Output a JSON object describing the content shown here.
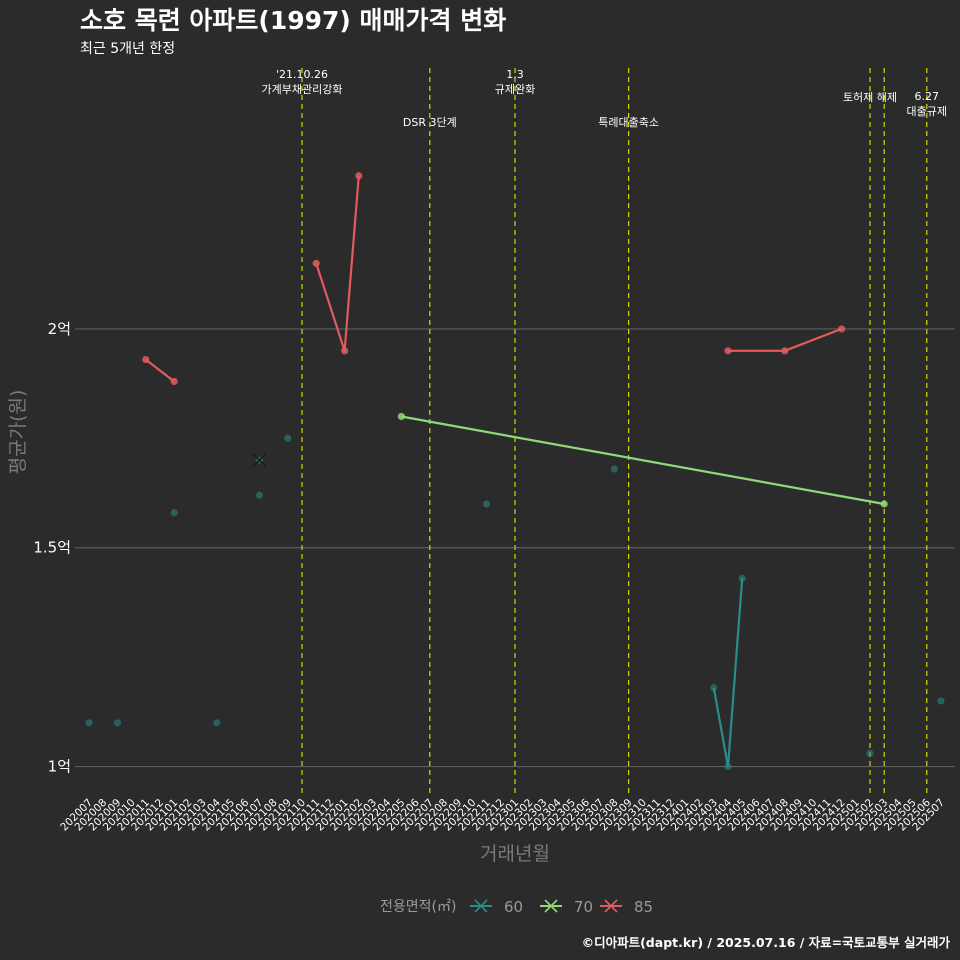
{
  "title": "소호 목련 아파트(1997) 매매가격 변화",
  "subtitle": "최근 5개년 한정",
  "caption": "©디아파트(dapt.kr) / 2025.07.16 / 자료=국토교통부 실거래가",
  "chart_data": {
    "type": "line",
    "xlabel": "거래년월",
    "ylabel": "평균가(원)",
    "ylim": [
      0.935,
      2.61
    ],
    "yticks": [
      {
        "value": 1.0,
        "label": "1억"
      },
      {
        "value": 1.5,
        "label": "1.5억"
      },
      {
        "value": 2.0,
        "label": "2억"
      }
    ],
    "grid": true,
    "categories": [
      "202007",
      "202008",
      "202009",
      "202010",
      "202011",
      "202012",
      "202101",
      "202102",
      "202103",
      "202104",
      "202105",
      "202106",
      "202107",
      "202108",
      "202109",
      "202110",
      "202111",
      "202112",
      "202201",
      "202202",
      "202203",
      "202204",
      "202205",
      "202206",
      "202207",
      "202208",
      "202209",
      "202210",
      "202211",
      "202212",
      "202301",
      "202302",
      "202303",
      "202304",
      "202305",
      "202306",
      "202307",
      "202308",
      "202309",
      "202310",
      "202311",
      "202312",
      "202401",
      "202402",
      "202403",
      "202404",
      "202405",
      "202406",
      "202407",
      "202408",
      "202409",
      "202410",
      "202411",
      "202412",
      "202501",
      "202502",
      "202503",
      "202504",
      "202505",
      "202506",
      "202507"
    ],
    "legend_title": "전용면적(㎡)",
    "legend_position": "bottom",
    "series": [
      {
        "name": "60",
        "color": "#2a8c88",
        "lines": [
          [
            [
              "202403",
              1.18
            ],
            [
              "202404",
              1.0
            ],
            [
              "202405",
              1.43
            ]
          ]
        ],
        "points": [
          [
            "202007",
            1.1
          ],
          [
            "202009",
            1.1
          ],
          [
            "202101",
            1.58
          ],
          [
            "202104",
            1.1
          ],
          [
            "202107",
            1.62
          ],
          [
            "202107",
            1.7
          ],
          [
            "202109",
            1.75
          ],
          [
            "202211",
            1.6
          ],
          [
            "202308",
            1.68
          ],
          [
            "202403",
            1.18
          ],
          [
            "202404",
            1.0
          ],
          [
            "202405",
            1.43
          ],
          [
            "202502",
            1.03
          ],
          [
            "202507",
            1.15
          ]
        ]
      },
      {
        "name": "70",
        "color": "#8fd97a",
        "lines": [
          [
            [
              "202205",
              1.8
            ],
            [
              "202503",
              1.6
            ]
          ]
        ],
        "points": [
          [
            "202205",
            1.8
          ],
          [
            "202503",
            1.6
          ]
        ]
      },
      {
        "name": "85",
        "color": "#e35b5d",
        "lines": [
          [
            [
              "202011",
              1.93
            ],
            [
              "202101",
              1.88
            ]
          ],
          [
            [
              "202111",
              2.15
            ],
            [
              "202201",
              1.95
            ],
            [
              "202202",
              2.35
            ]
          ],
          [
            [
              "202404",
              1.95
            ],
            [
              "202408",
              1.95
            ],
            [
              "202412",
              2.0
            ]
          ]
        ],
        "points": [
          [
            "202011",
            1.93
          ],
          [
            "202101",
            1.88
          ],
          [
            "202111",
            2.15
          ],
          [
            "202201",
            1.95
          ],
          [
            "202202",
            2.35
          ],
          [
            "202404",
            1.95
          ],
          [
            "202408",
            1.95
          ],
          [
            "202412",
            2.0
          ]
        ]
      }
    ],
    "annotations": [
      {
        "x": "202110",
        "lines": [
          "'21.10.26",
          "가계부채관리강화"
        ],
        "level": 1
      },
      {
        "x": "202207",
        "lines": [
          "DSR 3단계"
        ],
        "level": 2
      },
      {
        "x": "202301",
        "lines": [
          "1.3",
          "규제완화"
        ],
        "level": 1
      },
      {
        "x": "202309",
        "lines": [
          "특례대출축소"
        ],
        "level": 2
      },
      {
        "x": "202502",
        "lines": [
          "토허제 해제"
        ],
        "level": 1
      },
      {
        "x": "202503",
        "lines": [],
        "level": 1
      },
      {
        "x": "202506",
        "lines": [
          "6.27",
          "대출규제"
        ],
        "level": 3
      }
    ]
  }
}
